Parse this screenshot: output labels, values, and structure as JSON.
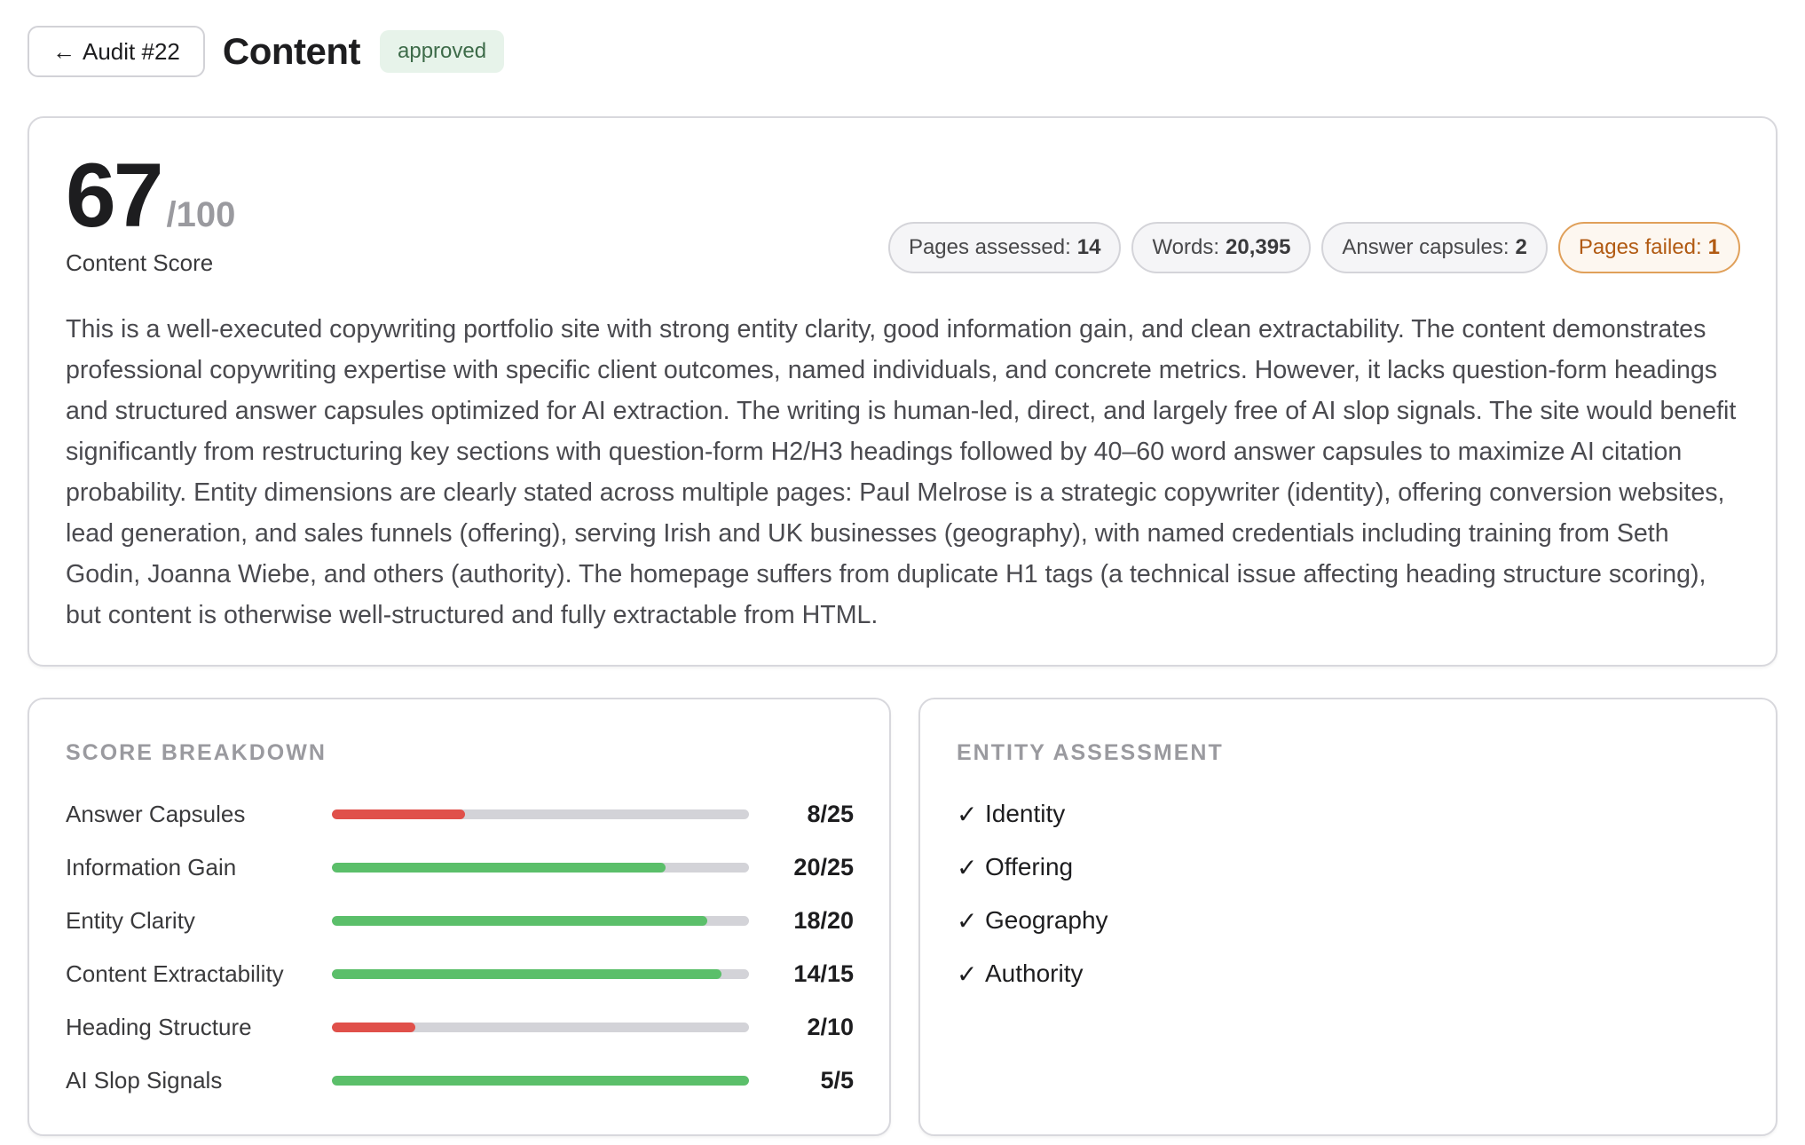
{
  "header": {
    "back_label": "Audit #22",
    "title": "Content",
    "status": "approved"
  },
  "summary": {
    "score": "67",
    "score_max": "/100",
    "score_label": "Content Score",
    "stats": [
      {
        "label": "Pages assessed:",
        "value": "14",
        "status": "neutral"
      },
      {
        "label": "Words:",
        "value": "20,395",
        "status": "neutral"
      },
      {
        "label": "Answer capsules:",
        "value": "2",
        "status": "neutral"
      },
      {
        "label": "Pages failed:",
        "value": "1",
        "status": "warning"
      }
    ],
    "text": "This is a well-executed copywriting portfolio site with strong entity clarity, good information gain, and clean extractability. The content demonstrates professional copywriting expertise with specific client outcomes, named individuals, and concrete metrics. However, it lacks question-form headings and structured answer capsules optimized for AI extraction. The writing is human-led, direct, and largely free of AI slop signals. The site would benefit significantly from restructuring key sections with question-form H2/H3 headings followed by 40–60 word answer capsules to maximize AI citation probability. Entity dimensions are clearly stated across multiple pages: Paul Melrose is a strategic copywriter (identity), offering conversion websites, lead generation, and sales funnels (offering), serving Irish and UK businesses (geography), with named credentials including training from Seth Godin, Joanna Wiebe, and others (authority). The homepage suffers from duplicate H1 tags (a technical issue affecting heading structure scoring), but content is otherwise well-structured and fully extractable from HTML."
  },
  "breakdown": {
    "title": "SCORE BREAKDOWN",
    "items": [
      {
        "label": "Answer Capsules",
        "score": 8,
        "max": 25,
        "display": "8/25",
        "color": "#e0504a"
      },
      {
        "label": "Information Gain",
        "score": 20,
        "max": 25,
        "display": "20/25",
        "color": "#5bbf6a"
      },
      {
        "label": "Entity Clarity",
        "score": 18,
        "max": 20,
        "display": "18/20",
        "color": "#5bbf6a"
      },
      {
        "label": "Content Extractability",
        "score": 14,
        "max": 15,
        "display": "14/15",
        "color": "#5bbf6a"
      },
      {
        "label": "Heading Structure",
        "score": 2,
        "max": 10,
        "display": "2/10",
        "color": "#e0504a"
      },
      {
        "label": "AI Slop Signals",
        "score": 5,
        "max": 5,
        "display": "5/5",
        "color": "#5bbf6a"
      }
    ]
  },
  "entity": {
    "title": "ENTITY ASSESSMENT",
    "items": [
      {
        "label": "Identity",
        "check": "✓"
      },
      {
        "label": "Offering",
        "check": "✓"
      },
      {
        "label": "Geography",
        "check": "✓"
      },
      {
        "label": "Authority",
        "check": "✓"
      }
    ]
  }
}
